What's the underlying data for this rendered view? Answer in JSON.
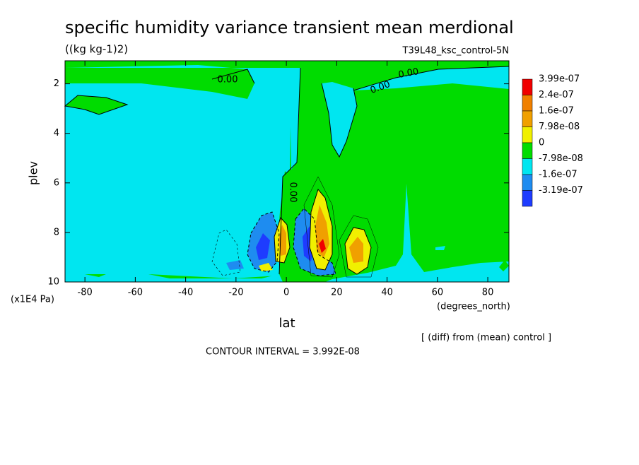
{
  "chart_data": {
    "type": "contour",
    "title": "specific humidity variance transient mean merdional",
    "subtitle": "((kg kg-1)2)",
    "run_label": "T39L48_ksc_control-5N",
    "x_label": "lat",
    "x_unit": "(degrees_north)",
    "y_label": "plev",
    "y_unit": "(x1E4 Pa)",
    "note": "[ (diff) from (mean) control ]",
    "contour_interval": "CONTOUR INTERVAL = 3.992E-08",
    "contour_labels": [
      "0.00",
      "0.00",
      "0.00",
      "0.00"
    ],
    "xlim": [
      -87.9,
      88.4
    ],
    "xticks": [
      -80,
      -60,
      -40,
      -20,
      0,
      20,
      40,
      60,
      80
    ],
    "ylim": [
      1.07,
      10
    ],
    "y_inverted": true,
    "yticks": [
      2,
      4,
      6,
      8,
      10
    ],
    "colorbar": {
      "levels": [
        {
          "value": 3.99e-07,
          "label": "3.99e-07"
        },
        {
          "value": 2.4e-07,
          "label": "2.4e-07"
        },
        {
          "value": 1.6e-07,
          "label": "1.6e-07"
        },
        {
          "value": 7.98e-08,
          "label": "7.98e-08"
        },
        0,
        {
          "value": -7.98e-08,
          "label": "-7.98e-08"
        },
        {
          "value": -1.6e-07,
          "label": "-1.6e-07"
        },
        {
          "value": -3.19e-07,
          "label": "-3.19e-07"
        }
      ],
      "colors": [
        "#f00000",
        "#f08000",
        "#f0a000",
        "#f0f000",
        "#00dc00",
        "#00e6f0",
        "#1e8cf0",
        "#1e3cff"
      ]
    }
  }
}
